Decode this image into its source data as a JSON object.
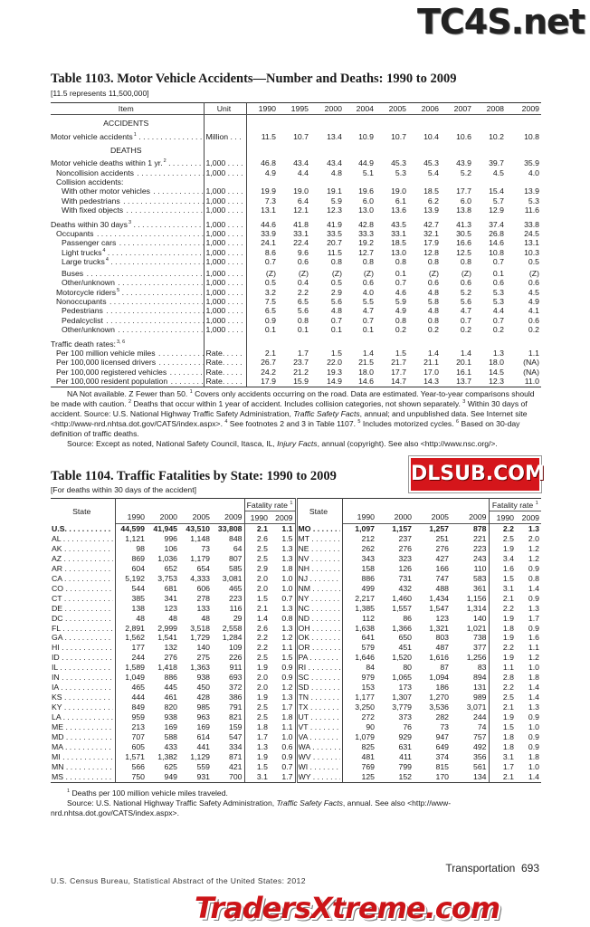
{
  "watermarks": {
    "top": "TC4S.net",
    "middle": "DLSUB.COM",
    "bottom": "TradersXtreme.com"
  },
  "t1103": {
    "title": "Table 1103. Motor Vehicle Accidents—Number and Deaths: 1990 to 2009",
    "subtitle": "[11.5 represents 11,500,000]",
    "headers": {
      "item": "Item",
      "unit": "Unit",
      "years": [
        "1990",
        "1995",
        "2000",
        "2004",
        "2005",
        "2006",
        "2007",
        "2008",
        "2009"
      ]
    },
    "rows": [
      {
        "type": "heading",
        "label": "ACCIDENTS"
      },
      {
        "label": "Motor vehicle accidents",
        "sup": "1",
        "unit": "Million . . .",
        "indent": 0,
        "values": [
          "11.5",
          "10.7",
          "13.4",
          "10.9",
          "10.7",
          "10.4",
          "10.6",
          "10.2",
          "10.8"
        ]
      },
      {
        "type": "heading",
        "label": "DEATHS"
      },
      {
        "label": "Motor vehicle deaths within 1 yr.",
        "sup": "2",
        "unit": "1,000 . . . .",
        "indent": 0,
        "values": [
          "46.8",
          "43.4",
          "43.4",
          "44.9",
          "45.3",
          "45.3",
          "43.9",
          "39.7",
          "35.9"
        ]
      },
      {
        "label": "Noncollision accidents",
        "unit": "1,000 . . . .",
        "indent": 1,
        "values": [
          "4.9",
          "4.4",
          "4.8",
          "5.1",
          "5.3",
          "5.4",
          "5.2",
          "4.5",
          "4.0"
        ]
      },
      {
        "type": "group",
        "label": "Collision accidents:",
        "indent": 1
      },
      {
        "label": "With other motor vehicles",
        "unit": "1,000 . . . .",
        "indent": 2,
        "values": [
          "19.9",
          "19.0",
          "19.1",
          "19.6",
          "19.0",
          "18.5",
          "17.7",
          "15.4",
          "13.9"
        ]
      },
      {
        "label": "With pedestrians",
        "unit": "1,000 . . . .",
        "indent": 2,
        "values": [
          "7.3",
          "6.4",
          "5.9",
          "6.0",
          "6.1",
          "6.2",
          "6.0",
          "5.7",
          "5.3"
        ]
      },
      {
        "label": "With fixed objects",
        "unit": "1,000 . . . .",
        "indent": 2,
        "values": [
          "13.1",
          "12.1",
          "12.3",
          "13.0",
          "13.6",
          "13.9",
          "13.8",
          "12.9",
          "11.6"
        ]
      },
      {
        "label": "Deaths within 30 days",
        "sup": "3",
        "unit": "1,000 . . . .",
        "indent": 0,
        "values": [
          "44.6",
          "41.8",
          "41.9",
          "42.8",
          "43.5",
          "42.7",
          "41.3",
          "37.4",
          "33.8"
        ]
      },
      {
        "label": "Occupants",
        "unit": "1,000 . . . .",
        "indent": 1,
        "values": [
          "33.9",
          "33.1",
          "33.5",
          "33.3",
          "33.1",
          "32.1",
          "30.5",
          "26.8",
          "24.5"
        ]
      },
      {
        "label": "Passenger cars",
        "unit": "1,000 . . . .",
        "indent": 2,
        "values": [
          "24.1",
          "22.4",
          "20.7",
          "19.2",
          "18.5",
          "17.9",
          "16.6",
          "14.6",
          "13.1"
        ]
      },
      {
        "label": "Light trucks",
        "sup": "4",
        "unit": "1,000 . . . .",
        "indent": 2,
        "values": [
          "8.6",
          "9.6",
          "11.5",
          "12.7",
          "13.0",
          "12.8",
          "12.5",
          "10.8",
          "10.3"
        ]
      },
      {
        "label": "Large trucks",
        "sup": "4",
        "unit": "1,000 . . . .",
        "indent": 2,
        "values": [
          "0.7",
          "0.6",
          "0.8",
          "0.8",
          "0.8",
          "0.8",
          "0.8",
          "0.7",
          "0.5"
        ]
      },
      {
        "label": "Buses",
        "unit": "1,000 . . . .",
        "indent": 2,
        "values": [
          "(Z)",
          "(Z)",
          "(Z)",
          "(Z)",
          "0.1",
          "(Z)",
          "(Z)",
          "0.1",
          "(Z)"
        ]
      },
      {
        "label": "Other/unknown",
        "unit": "1,000 . . . .",
        "indent": 2,
        "values": [
          "0.5",
          "0.4",
          "0.5",
          "0.6",
          "0.7",
          "0.6",
          "0.6",
          "0.6",
          "0.6"
        ]
      },
      {
        "label": "Motorcycle riders",
        "sup": "5",
        "unit": "1,000 . . . .",
        "indent": 1,
        "values": [
          "3.2",
          "2.2",
          "2.9",
          "4.0",
          "4.6",
          "4.8",
          "5.2",
          "5.3",
          "4.5"
        ]
      },
      {
        "label": "Nonoccupants",
        "unit": "1,000 . . . .",
        "indent": 1,
        "values": [
          "7.5",
          "6.5",
          "5.6",
          "5.5",
          "5.9",
          "5.8",
          "5.6",
          "5.3",
          "4.9"
        ]
      },
      {
        "label": "Pedestrians",
        "unit": "1,000 . . . .",
        "indent": 2,
        "values": [
          "6.5",
          "5.6",
          "4.8",
          "4.7",
          "4.9",
          "4.8",
          "4.7",
          "4.4",
          "4.1"
        ]
      },
      {
        "label": "Pedalcyclist",
        "unit": "1,000 . . . .",
        "indent": 2,
        "values": [
          "0.9",
          "0.8",
          "0.7",
          "0.7",
          "0.8",
          "0.8",
          "0.7",
          "0.7",
          "0.6"
        ]
      },
      {
        "label": "Other/unknown",
        "unit": "1,000 . . . .",
        "indent": 2,
        "values": [
          "0.1",
          "0.1",
          "0.1",
          "0.1",
          "0.2",
          "0.2",
          "0.2",
          "0.2",
          "0.2"
        ]
      },
      {
        "type": "group",
        "label": "Traffic death rates:",
        "sup": "3, 6",
        "indent": 0
      },
      {
        "label": "Per 100 million vehicle miles",
        "unit": "Rate. . . . .",
        "indent": 1,
        "values": [
          "2.1",
          "1.7",
          "1.5",
          "1.4",
          "1.5",
          "1.4",
          "1.4",
          "1.3",
          "1.1"
        ]
      },
      {
        "label": "Per 100,000 licensed drivers",
        "unit": "Rate. . . . .",
        "indent": 1,
        "values": [
          "26.7",
          "23.7",
          "22.0",
          "21.5",
          "21.7",
          "21.1",
          "20.1",
          "18.0",
          "(NA)"
        ]
      },
      {
        "label": "Per 100,000 registered vehicles",
        "unit": "Rate. . . . .",
        "indent": 1,
        "values": [
          "24.2",
          "21.2",
          "19.3",
          "18.0",
          "17.7",
          "17.0",
          "16.1",
          "14.5",
          "(NA)"
        ]
      },
      {
        "label": "Per 100,000 resident population",
        "unit": "Rate. . . . .",
        "indent": 1,
        "values": [
          "17.9",
          "15.9",
          "14.9",
          "14.6",
          "14.7",
          "14.3",
          "13.7",
          "12.3",
          "11.0"
        ]
      }
    ],
    "notes": [
      [
        {
          "t": "NA Not available. Z Fewer than 50. "
        },
        {
          "t": "1",
          "s": "sup"
        },
        {
          "t": " Covers only accidents occurring on the road. Data are estimated. Year-to-year comparisons should be made with caution. "
        },
        {
          "t": "2",
          "s": "sup"
        },
        {
          "t": " Deaths that occur within 1 year of accident. Includes collision categories, not shown separately. "
        },
        {
          "t": "3",
          "s": "sup"
        },
        {
          "t": " Within 30 days of accident. Source: U.S. National Highway Traffic Safety Administration, "
        },
        {
          "t": "Traffic Safety Facts",
          "s": "i"
        },
        {
          "t": ", annual; and unpublished data. See Internet site <http://www-nrd.nhtsa.dot.gov/CATS/index.aspx>. "
        },
        {
          "t": "4",
          "s": "sup"
        },
        {
          "t": " See footnotes 2 and 3 in Table 1107. "
        },
        {
          "t": "5",
          "s": "sup"
        },
        {
          "t": " Includes motorized cycles. "
        },
        {
          "t": "6",
          "s": "sup"
        },
        {
          "t": " Based on 30-day definition of traffic deaths."
        }
      ],
      [
        {
          "t": "Source: Except as noted, National Safety Council, Itasca, IL, "
        },
        {
          "t": "Injury Facts",
          "s": "i"
        },
        {
          "t": ", annual (copyright). See also <http://www.nsc.org/>."
        }
      ]
    ]
  },
  "t1104": {
    "title": "Table 1104. Traffic Fatalities by State: 1990 to 2009",
    "subtitle": "[For deaths within 30 days of the accident]",
    "headers": {
      "state": "State",
      "fatality_rate": "Fatality rate",
      "fatality_rate_sup": "1",
      "years": [
        "1990",
        "2000",
        "2005",
        "2009"
      ],
      "rate_years": [
        "1990",
        "2009"
      ]
    },
    "left": [
      {
        "state": "U.S.",
        "values": [
          "44,599",
          "41,945",
          "43,510",
          "33,808",
          "2.1",
          "1.1"
        ]
      },
      {
        "state": "AL",
        "values": [
          "1,121",
          "996",
          "1,148",
          "848",
          "2.6",
          "1.5"
        ]
      },
      {
        "state": "AK",
        "values": [
          "98",
          "106",
          "73",
          "64",
          "2.5",
          "1.3"
        ]
      },
      {
        "state": "AZ",
        "values": [
          "869",
          "1,036",
          "1,179",
          "807",
          "2.5",
          "1.3"
        ]
      },
      {
        "state": "AR",
        "values": [
          "604",
          "652",
          "654",
          "585",
          "2.9",
          "1.8"
        ]
      },
      {
        "state": "CA",
        "values": [
          "5,192",
          "3,753",
          "4,333",
          "3,081",
          "2.0",
          "1.0"
        ]
      },
      {
        "state": "CO",
        "values": [
          "544",
          "681",
          "606",
          "465",
          "2.0",
          "1.0"
        ]
      },
      {
        "state": "CT",
        "values": [
          "385",
          "341",
          "278",
          "223",
          "1.5",
          "0.7"
        ]
      },
      {
        "state": "DE",
        "values": [
          "138",
          "123",
          "133",
          "116",
          "2.1",
          "1.3"
        ]
      },
      {
        "state": "DC",
        "values": [
          "48",
          "48",
          "48",
          "29",
          "1.4",
          "0.8"
        ]
      },
      {
        "state": "FL",
        "values": [
          "2,891",
          "2,999",
          "3,518",
          "2,558",
          "2.6",
          "1.3"
        ]
      },
      {
        "state": "GA",
        "values": [
          "1,562",
          "1,541",
          "1,729",
          "1,284",
          "2.2",
          "1.2"
        ]
      },
      {
        "state": "HI",
        "values": [
          "177",
          "132",
          "140",
          "109",
          "2.2",
          "1.1"
        ]
      },
      {
        "state": "ID",
        "values": [
          "244",
          "276",
          "275",
          "226",
          "2.5",
          "1.5"
        ]
      },
      {
        "state": "IL",
        "values": [
          "1,589",
          "1,418",
          "1,363",
          "911",
          "1.9",
          "0.9"
        ]
      },
      {
        "state": "IN",
        "values": [
          "1,049",
          "886",
          "938",
          "693",
          "2.0",
          "0.9"
        ]
      },
      {
        "state": "IA",
        "values": [
          "465",
          "445",
          "450",
          "372",
          "2.0",
          "1.2"
        ]
      },
      {
        "state": "KS",
        "values": [
          "444",
          "461",
          "428",
          "386",
          "1.9",
          "1.3"
        ]
      },
      {
        "state": "KY",
        "values": [
          "849",
          "820",
          "985",
          "791",
          "2.5",
          "1.7"
        ]
      },
      {
        "state": "LA",
        "values": [
          "959",
          "938",
          "963",
          "821",
          "2.5",
          "1.8"
        ]
      },
      {
        "state": "ME",
        "values": [
          "213",
          "169",
          "169",
          "159",
          "1.8",
          "1.1"
        ]
      },
      {
        "state": "MD",
        "values": [
          "707",
          "588",
          "614",
          "547",
          "1.7",
          "1.0"
        ]
      },
      {
        "state": "MA",
        "values": [
          "605",
          "433",
          "441",
          "334",
          "1.3",
          "0.6"
        ]
      },
      {
        "state": "MI",
        "values": [
          "1,571",
          "1,382",
          "1,129",
          "871",
          "1.9",
          "0.9"
        ]
      },
      {
        "state": "MN",
        "values": [
          "566",
          "625",
          "559",
          "421",
          "1.5",
          "0.7"
        ]
      },
      {
        "state": "MS",
        "values": [
          "750",
          "949",
          "931",
          "700",
          "3.1",
          "1.7"
        ]
      }
    ],
    "right": [
      {
        "state": "MO",
        "values": [
          "1,097",
          "1,157",
          "1,257",
          "878",
          "2.2",
          "1.3"
        ]
      },
      {
        "state": "MT",
        "values": [
          "212",
          "237",
          "251",
          "221",
          "2.5",
          "2.0"
        ]
      },
      {
        "state": "NE",
        "values": [
          "262",
          "276",
          "276",
          "223",
          "1.9",
          "1.2"
        ]
      },
      {
        "state": "NV",
        "values": [
          "343",
          "323",
          "427",
          "243",
          "3.4",
          "1.2"
        ]
      },
      {
        "state": "NH",
        "values": [
          "158",
          "126",
          "166",
          "110",
          "1.6",
          "0.9"
        ]
      },
      {
        "state": "NJ",
        "values": [
          "886",
          "731",
          "747",
          "583",
          "1.5",
          "0.8"
        ]
      },
      {
        "state": "NM",
        "values": [
          "499",
          "432",
          "488",
          "361",
          "3.1",
          "1.4"
        ]
      },
      {
        "state": "NY",
        "values": [
          "2,217",
          "1,460",
          "1,434",
          "1,156",
          "2.1",
          "0.9"
        ]
      },
      {
        "state": "NC",
        "values": [
          "1,385",
          "1,557",
          "1,547",
          "1,314",
          "2.2",
          "1.3"
        ]
      },
      {
        "state": "ND",
        "values": [
          "112",
          "86",
          "123",
          "140",
          "1.9",
          "1.7"
        ]
      },
      {
        "state": "OH",
        "values": [
          "1,638",
          "1,366",
          "1,321",
          "1,021",
          "1.8",
          "0.9"
        ]
      },
      {
        "state": "OK",
        "values": [
          "641",
          "650",
          "803",
          "738",
          "1.9",
          "1.6"
        ]
      },
      {
        "state": "OR",
        "values": [
          "579",
          "451",
          "487",
          "377",
          "2.2",
          "1.1"
        ]
      },
      {
        "state": "PA",
        "values": [
          "1,646",
          "1,520",
          "1,616",
          "1,256",
          "1.9",
          "1.2"
        ]
      },
      {
        "state": "RI",
        "values": [
          "84",
          "80",
          "87",
          "83",
          "1.1",
          "1.0"
        ]
      },
      {
        "state": "SC",
        "values": [
          "979",
          "1,065",
          "1,094",
          "894",
          "2.8",
          "1.8"
        ]
      },
      {
        "state": "SD",
        "values": [
          "153",
          "173",
          "186",
          "131",
          "2.2",
          "1.4"
        ]
      },
      {
        "state": "TN",
        "values": [
          "1,177",
          "1,307",
          "1,270",
          "989",
          "2.5",
          "1.4"
        ]
      },
      {
        "state": "TX",
        "values": [
          "3,250",
          "3,779",
          "3,536",
          "3,071",
          "2.1",
          "1.3"
        ]
      },
      {
        "state": "UT",
        "values": [
          "272",
          "373",
          "282",
          "244",
          "1.9",
          "0.9"
        ]
      },
      {
        "state": "VT",
        "values": [
          "90",
          "76",
          "73",
          "74",
          "1.5",
          "1.0"
        ]
      },
      {
        "state": "VA",
        "values": [
          "1,079",
          "929",
          "947",
          "757",
          "1.8",
          "0.9"
        ]
      },
      {
        "state": "WA",
        "values": [
          "825",
          "631",
          "649",
          "492",
          "1.8",
          "0.9"
        ]
      },
      {
        "state": "WV",
        "values": [
          "481",
          "411",
          "374",
          "356",
          "3.1",
          "1.8"
        ]
      },
      {
        "state": "WI",
        "values": [
          "769",
          "799",
          "815",
          "561",
          "1.7",
          "1.0"
        ]
      },
      {
        "state": "WY",
        "values": [
          "125",
          "152",
          "170",
          "134",
          "2.1",
          "1.4"
        ]
      }
    ],
    "notes": [
      [
        {
          "t": "1",
          "s": "sup"
        },
        {
          "t": " Deaths per 100 million vehicle miles traveled."
        }
      ],
      [
        {
          "t": "Source: U.S. National Highway Traffic Safety Administration, "
        },
        {
          "t": "Traffic Safety Facts",
          "s": "i"
        },
        {
          "t": ", annual. See also <http://www-nrd.nhtsa.dot.gov/CATS/index.aspx>."
        }
      ]
    ]
  },
  "footer": {
    "left": "U.S. Census Bureau, Statistical Abstract of the United States: 2012",
    "section": "Transportation",
    "page": "693"
  }
}
